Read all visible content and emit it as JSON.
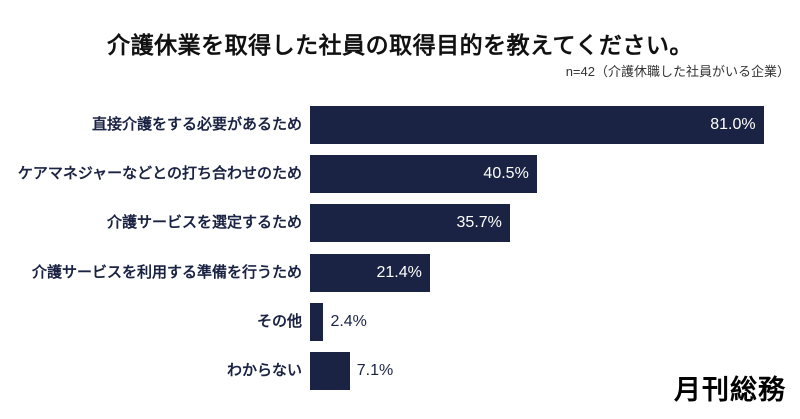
{
  "title": "介護休業を取得した社員の取得目的を教えてください。",
  "subtitle": "n=42（介護休職した社員がいる企業）",
  "logo_text": "月刊総務",
  "colors": {
    "bar": "#1a2343",
    "category_label": "#1a2343",
    "value_inside": "#ffffff",
    "value_outside": "#1a2343",
    "background": "#ffffff"
  },
  "chart_data": {
    "type": "bar",
    "orientation": "horizontal",
    "title": "介護休業を取得した社員の取得目的を教えてください。",
    "subtitle": "n=42（介護休職した社員がいる企業）",
    "xlabel": "",
    "ylabel": "",
    "xlim": [
      0,
      100
    ],
    "grid": false,
    "legend": false,
    "categories": [
      "直接介護をする必要があるため",
      "ケアマネジャーなどとの打ち合わせのため",
      "介護サービスを選定するため",
      "介護サービスを利用する準備を行うため",
      "その他",
      "わからない"
    ],
    "values": [
      81.0,
      40.5,
      35.7,
      21.4,
      2.4,
      7.1
    ],
    "value_labels": [
      "81.0%",
      "40.5%",
      "35.7%",
      "21.4%",
      "2.4%",
      "7.1%"
    ]
  }
}
